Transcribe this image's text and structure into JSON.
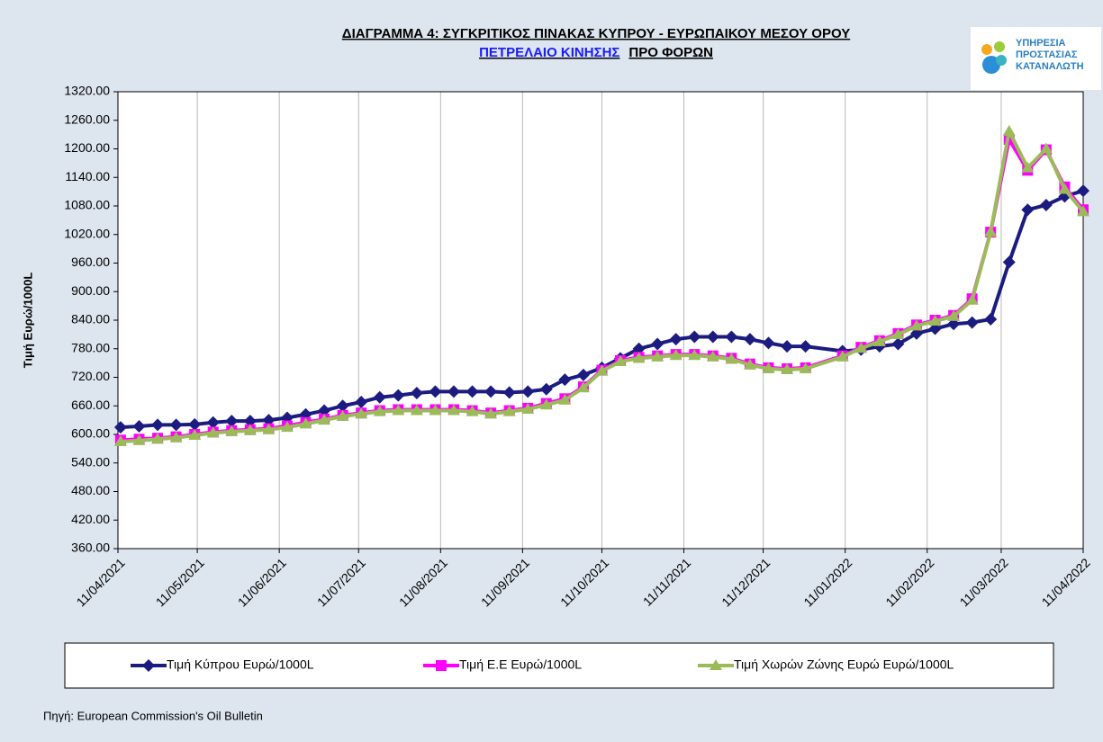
{
  "chart_data": {
    "type": "line",
    "title": "ΔΙΑΓΡΑΜΜΑ 4: ΣΥΓΚΡΙΤΙΚΟΣ ΠΙΝΑΚΑΣ ΚΥΠΡΟΥ - ΕΥΡΩΠΑΙΚΟΥ ΜΕΣΟΥ ΟΡΟΥ",
    "subtitle": [
      "ΠΕΤΡΕΛΑΙΟ ΚΙΝΗΣΗΣ",
      "ΠΡΟ  ΦΟΡΩΝ"
    ],
    "logo_text": [
      "ΥΠΗΡΕΣΙΑ",
      "ΠΡΟΣΤΑΣΙΑΣ",
      "ΚΑΤΑΝΑΛΩΤΗ"
    ],
    "y_label": "Τιμή Ευρώ/1000L",
    "source": "Πηγή: European Commission's Oil Bulletin",
    "x": [
      "2021-04-12",
      "2021-04-19",
      "2021-04-26",
      "2021-05-03",
      "2021-05-10",
      "2021-05-17",
      "2021-05-24",
      "2021-05-31",
      "2021-06-07",
      "2021-06-14",
      "2021-06-21",
      "2021-06-28",
      "2021-07-05",
      "2021-07-12",
      "2021-07-19",
      "2021-07-26",
      "2021-08-02",
      "2021-08-09",
      "2021-08-16",
      "2021-08-23",
      "2021-08-30",
      "2021-09-06",
      "2021-09-13",
      "2021-09-20",
      "2021-09-27",
      "2021-10-04",
      "2021-10-11",
      "2021-10-18",
      "2021-10-25",
      "2021-11-01",
      "2021-11-08",
      "2021-11-15",
      "2021-11-22",
      "2021-11-29",
      "2021-12-06",
      "2021-12-13",
      "2021-12-20",
      "2021-12-27",
      "2022-01-10",
      "2022-01-17",
      "2022-01-24",
      "2022-01-31",
      "2022-02-07",
      "2022-02-14",
      "2022-02-21",
      "2022-02-28",
      "2022-03-07",
      "2022-03-14",
      "2022-03-21",
      "2022-03-28",
      "2022-04-04",
      "2022-04-11"
    ],
    "series": [
      {
        "name": "Τιμή Κύπρου Ευρώ/1000L",
        "color": "#1c1c80",
        "marker": "diamond",
        "values": [
          615,
          617,
          620,
          620,
          621,
          625,
          628,
          628,
          630,
          635,
          642,
          650,
          660,
          668,
          678,
          682,
          687,
          690,
          690,
          690,
          690,
          688,
          690,
          695,
          715,
          725,
          740,
          760,
          780,
          790,
          800,
          805,
          805,
          805,
          800,
          792,
          785,
          785,
          775,
          778,
          785,
          790,
          812,
          822,
          832,
          835,
          842,
          962,
          1072,
          1082,
          1100,
          1112
        ]
      },
      {
        "name": "Τιμή Ε.Ε Ευρώ/1000L",
        "color": "#ff00ff",
        "marker": "square",
        "values": [
          588,
          590,
          592,
          595,
          600,
          605,
          608,
          610,
          612,
          618,
          625,
          632,
          640,
          645,
          650,
          652,
          652,
          652,
          652,
          650,
          645,
          650,
          655,
          665,
          675,
          700,
          735,
          755,
          762,
          765,
          768,
          768,
          765,
          760,
          748,
          740,
          738,
          740,
          765,
          783,
          797,
          812,
          830,
          840,
          850,
          885,
          1025,
          1220,
          1155,
          1198,
          1120,
          1072
        ]
      },
      {
        "name": "Τιμή Χωρών Ζώνης Ευρώ Ευρώ/1000L",
        "color": "#9bbb59",
        "marker": "triangle",
        "values": [
          585,
          587,
          590,
          593,
          598,
          603,
          606,
          608,
          610,
          615,
          622,
          630,
          638,
          643,
          648,
          650,
          650,
          650,
          650,
          648,
          643,
          648,
          653,
          662,
          672,
          698,
          733,
          753,
          760,
          763,
          766,
          766,
          763,
          758,
          746,
          738,
          736,
          738,
          763,
          781,
          795,
          810,
          828,
          838,
          848,
          882,
          1025,
          1237,
          1160,
          1200,
          1115,
          1068
        ]
      }
    ],
    "xlim": [
      "2021-04-11",
      "2022-04-11"
    ],
    "xticks": [
      {
        "value": "2021-04-11",
        "label": "11/04/2021"
      },
      {
        "value": "2021-05-11",
        "label": "11/05/2021"
      },
      {
        "value": "2021-06-11",
        "label": "11/06/2021"
      },
      {
        "value": "2021-07-11",
        "label": "11/07/2021"
      },
      {
        "value": "2021-08-11",
        "label": "11/08/2021"
      },
      {
        "value": "2021-09-11",
        "label": "11/09/2021"
      },
      {
        "value": "2021-10-11",
        "label": "11/10/2021"
      },
      {
        "value": "2021-11-11",
        "label": "11/11/2021"
      },
      {
        "value": "2021-12-11",
        "label": "11/12/2021"
      },
      {
        "value": "2022-01-11",
        "label": "11/01/2022"
      },
      {
        "value": "2022-02-11",
        "label": "11/02/2022"
      },
      {
        "value": "2022-03-11",
        "label": "11/03/2022"
      },
      {
        "value": "2022-04-11",
        "label": "11/04/2022"
      }
    ],
    "ylim": [
      360,
      1320
    ],
    "yticks": [
      {
        "value": 360,
        "label": "360.00"
      },
      {
        "value": 420,
        "label": "420.00"
      },
      {
        "value": 480,
        "label": "480.00"
      },
      {
        "value": 540,
        "label": "540.00"
      },
      {
        "value": 600,
        "label": "600.00"
      },
      {
        "value": 660,
        "label": "660.00"
      },
      {
        "value": 720,
        "label": "720.00"
      },
      {
        "value": 780,
        "label": "780.00"
      },
      {
        "value": 840,
        "label": "840.00"
      },
      {
        "value": 900,
        "label": "900.00"
      },
      {
        "value": 960,
        "label": "960.00"
      },
      {
        "value": 1020,
        "label": "1020.00"
      },
      {
        "value": 1080,
        "label": "1080.00"
      },
      {
        "value": 1140,
        "label": "1140.00"
      },
      {
        "value": 1200,
        "label": "1200.00"
      },
      {
        "value": 1260,
        "label": "1260.00"
      },
      {
        "value": 1320,
        "label": "1320.00"
      }
    ],
    "xgrid": true,
    "legend": "bottom"
  }
}
